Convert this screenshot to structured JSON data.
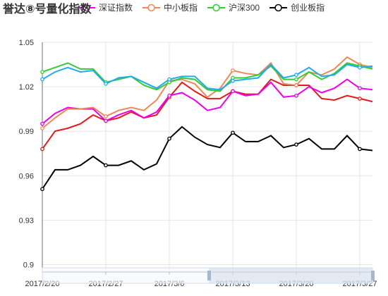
{
  "chart_data": {
    "type": "line",
    "title": "誉达⑧号量化指数",
    "legend_position": "top",
    "grid": true,
    "ylim": [
      0.895,
      1.05
    ],
    "yticks": [
      0.9,
      0.93,
      0.96,
      0.99,
      1.02,
      1.05
    ],
    "xtick_labels": [
      "2017/2/20",
      "2017/2/27",
      "2017/3/6",
      "2017/3/13",
      "2017/3/20",
      "2017/3/27"
    ],
    "x": [
      "2017/2/20",
      "2017/2/21",
      "2017/2/22",
      "2017/2/23",
      "2017/2/24",
      "2017/2/27",
      "2017/2/28",
      "2017/3/1",
      "2017/3/2",
      "2017/3/3",
      "2017/3/6",
      "2017/3/7",
      "2017/3/8",
      "2017/3/9",
      "2017/3/10",
      "2017/3/13",
      "2017/3/14",
      "2017/3/15",
      "2017/3/16",
      "2017/3/17",
      "2017/3/20",
      "2017/3/21",
      "2017/3/22",
      "2017/3/23",
      "2017/3/24",
      "2017/3/27",
      "2017/3/28"
    ],
    "series": [
      {
        "name": "",
        "color": "#e41a1c",
        "values": [
          0.978,
          0.99,
          0.992,
          0.995,
          1.001,
          0.997,
          0.999,
          1.003,
          0.999,
          1.001,
          1.013,
          1.023,
          1.017,
          1.012,
          1.012,
          1.017,
          1.015,
          1.015,
          1.025,
          1.021,
          1.021,
          1.021,
          1.012,
          1.011,
          1.014,
          1.012,
          1.01
        ]
      },
      {
        "name": "深证指数",
        "color": "#ee00ee",
        "values": [
          0.995,
          1.002,
          1.006,
          1.005,
          1.005,
          0.997,
          1.001,
          1.004,
          0.999,
          1.003,
          1.014,
          1.016,
          1.011,
          1.004,
          1.006,
          1.017,
          1.014,
          1.015,
          1.023,
          1.013,
          1.014,
          1.02,
          1.016,
          1.019,
          1.025,
          1.019,
          1.018
        ]
      },
      {
        "name": "中小板指",
        "color": "#ee8855",
        "values": [
          0.992,
          0.999,
          1.005,
          1.005,
          1.006,
          1.0,
          1.004,
          1.006,
          1.004,
          1.011,
          1.024,
          1.025,
          1.022,
          1.013,
          1.019,
          1.031,
          1.029,
          1.028,
          1.036,
          1.022,
          1.021,
          1.03,
          1.028,
          1.032,
          1.04,
          1.035,
          1.033
        ]
      },
      {
        "name": "沪深300",
        "color": "#33cc33",
        "values": [
          1.03,
          1.033,
          1.036,
          1.032,
          1.032,
          1.023,
          1.025,
          1.027,
          1.021,
          1.018,
          1.023,
          1.026,
          1.025,
          1.018,
          1.017,
          1.026,
          1.026,
          1.028,
          1.034,
          1.025,
          1.025,
          1.03,
          1.025,
          1.029,
          1.036,
          1.034,
          1.032
        ]
      },
      {
        "name": "",
        "color": "#22aaee",
        "values": [
          1.025,
          1.03,
          1.033,
          1.03,
          1.031,
          1.022,
          1.026,
          1.027,
          1.023,
          1.019,
          1.025,
          1.027,
          1.027,
          1.019,
          1.018,
          1.024,
          1.025,
          1.026,
          1.035,
          1.026,
          1.028,
          1.033,
          1.027,
          1.028,
          1.035,
          1.033,
          1.034
        ]
      },
      {
        "name": "创业板指",
        "color": "#000000",
        "values": [
          0.951,
          0.964,
          0.964,
          0.967,
          0.973,
          0.967,
          0.967,
          0.97,
          0.964,
          0.968,
          0.985,
          0.993,
          0.986,
          0.981,
          0.979,
          0.989,
          0.983,
          0.983,
          0.987,
          0.979,
          0.981,
          0.985,
          0.978,
          0.978,
          0.987,
          0.978,
          0.977
        ]
      }
    ]
  }
}
